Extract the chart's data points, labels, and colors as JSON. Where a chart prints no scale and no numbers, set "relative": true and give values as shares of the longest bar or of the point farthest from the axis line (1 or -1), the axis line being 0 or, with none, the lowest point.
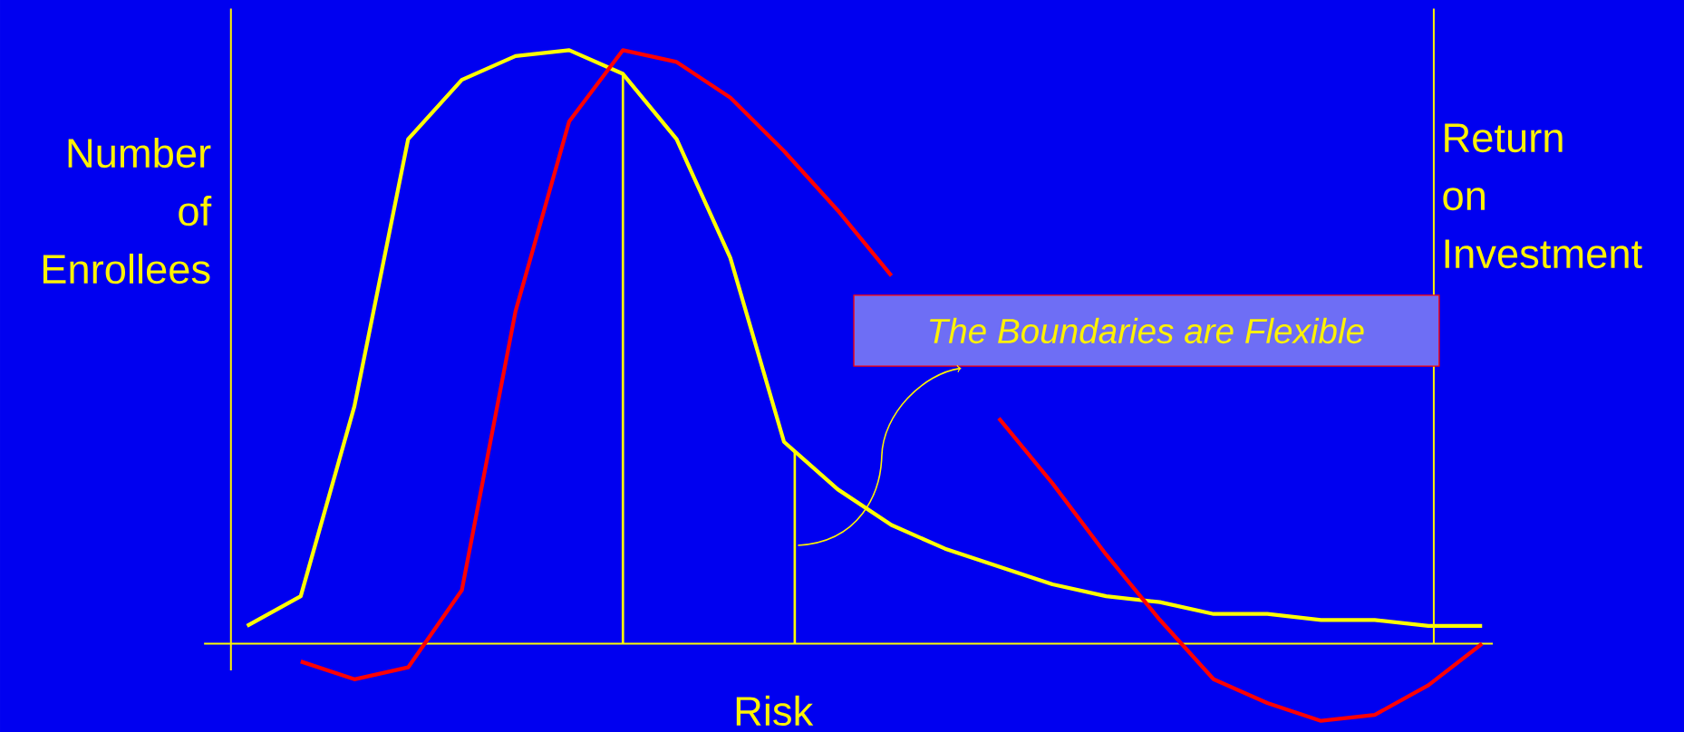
{
  "chart_data": {
    "type": "line",
    "relative": true,
    "xlabel": "Risk",
    "ylabel": "Number of Enrollees",
    "y2label": "Return on Investment",
    "categories": [
      null,
      null,
      null,
      null,
      null,
      null,
      null,
      null,
      null,
      null,
      null,
      null,
      null,
      null,
      null,
      null,
      null,
      null,
      null,
      null,
      null,
      null,
      null,
      null
    ],
    "series": [
      {
        "color": "#ffff00",
        "values": [
          0.03,
          0.08,
          0.4,
          0.85,
          0.95,
          0.99,
          1.0,
          0.96,
          0.85,
          0.65,
          0.34,
          0.26,
          0.2,
          0.16,
          0.13,
          0.1,
          0.08,
          0.07,
          0.05,
          0.05,
          0.04,
          0.04,
          0.03,
          0.03
        ]
      },
      {
        "color": "#ff0000",
        "values": [
          null,
          -0.03,
          -0.06,
          -0.04,
          0.09,
          0.56,
          0.88,
          1.0,
          0.98,
          0.92,
          0.83,
          0.73,
          0.62,
          null,
          0.38,
          0.27,
          0.15,
          0.04,
          -0.06,
          -0.1,
          -0.13,
          -0.12,
          -0.07,
          0.0
        ]
      }
    ],
    "ref_lines": [
      {
        "axis": "y",
        "value": 0,
        "color": "#ffff00"
      }
    ],
    "annotations": [
      "The Boundaries are Flexible"
    ]
  }
}
